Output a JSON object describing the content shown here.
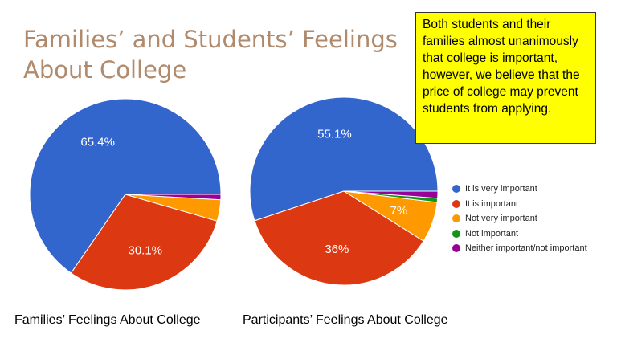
{
  "slide": {
    "title": "Families’ and Students’ Feelings About College",
    "note": "Both students and their families almost unanimously that college is important, however, we believe that the price of college may prevent students from applying."
  },
  "legend": [
    {
      "label": "It is very important",
      "color": "#3366cc"
    },
    {
      "label": "It is important",
      "color": "#dc3912"
    },
    {
      "label": "Not very important",
      "color": "#ff9900"
    },
    {
      "label": "Not important",
      "color": "#109618"
    },
    {
      "label": "Neither important/not important",
      "color": "#990099"
    }
  ],
  "chart_data": [
    {
      "type": "pie",
      "title": "Families’ Feelings About College",
      "categories": [
        "It is very important",
        "It is important",
        "Not very important",
        "Not important",
        "Neither important/not important"
      ],
      "values": [
        65.4,
        30.1,
        3.6,
        0,
        0.9
      ],
      "data_labels": [
        "65.4%",
        "30.1%",
        "",
        "",
        ""
      ],
      "colors": [
        "#3366cc",
        "#dc3912",
        "#ff9900",
        "#109618",
        "#990099"
      ]
    },
    {
      "type": "pie",
      "title": "Participants’ Feelings About College",
      "categories": [
        "It is very important",
        "It is important",
        "Not very important",
        "Not important",
        "Neither important/not important"
      ],
      "values": [
        55.1,
        36,
        7,
        0.7,
        1.2
      ],
      "data_labels": [
        "55.1%",
        "36%",
        "7%",
        "",
        ""
      ],
      "colors": [
        "#3366cc",
        "#dc3912",
        "#ff9900",
        "#109618",
        "#990099"
      ]
    }
  ]
}
